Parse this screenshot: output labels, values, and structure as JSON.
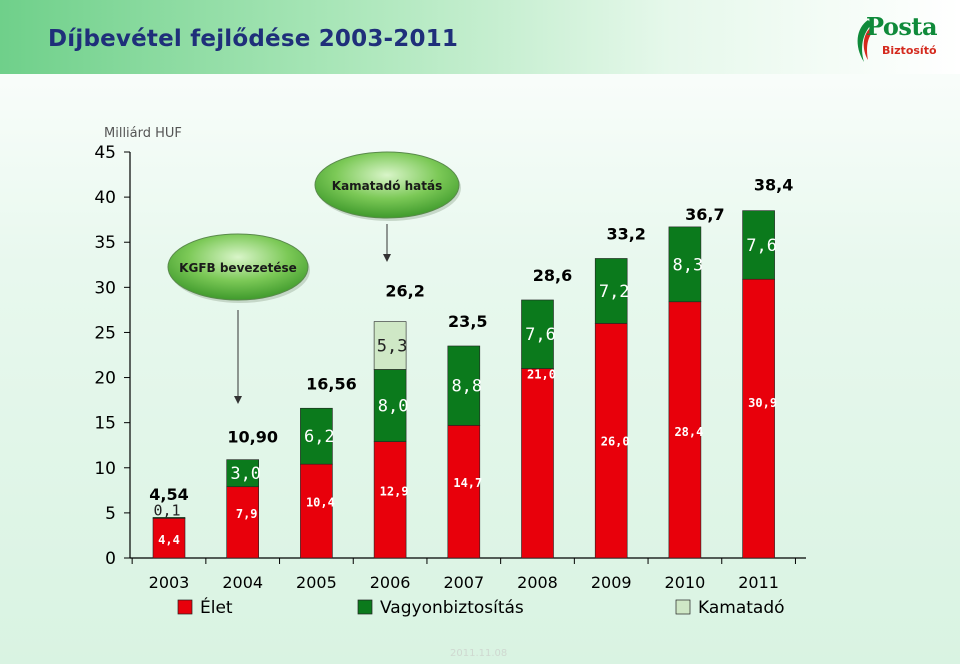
{
  "header": {
    "title": "Díjbevétel fejlődése 2003-2011",
    "logo_primary": "Posta",
    "logo_secondary": "Biztosító"
  },
  "callouts": [
    {
      "label": "KGFB bevezetése",
      "year": "2004"
    },
    {
      "label": "Kamatadó hatás",
      "year": "2006"
    }
  ],
  "colors": {
    "elet": "#e8000b",
    "vagyon": "#0b7a1c",
    "kamatado": "#cfe8c6",
    "axis": "#000000",
    "title": "#1f2f7a"
  },
  "chart_data": {
    "type": "bar",
    "stacked": true,
    "unit_label": "Milliárd HUF",
    "ylim": [
      0,
      45
    ],
    "yticks": [
      0,
      5,
      10,
      15,
      20,
      25,
      30,
      35,
      40,
      45
    ],
    "categories": [
      "2003",
      "2004",
      "2005",
      "2006",
      "2007",
      "2008",
      "2009",
      "2010",
      "2011"
    ],
    "series": [
      {
        "name": "Élet",
        "values": [
          4.4,
          7.9,
          10.4,
          12.9,
          14.7,
          21.0,
          26.0,
          28.4,
          30.9
        ],
        "labels": [
          "4,4",
          "7,9",
          "10,4",
          "12,9",
          "14,7",
          "21,0",
          "26,0",
          "28,4",
          "30,9"
        ]
      },
      {
        "name": "Vagyonbiztosítás",
        "values": [
          0.1,
          3.0,
          6.2,
          8.0,
          8.8,
          7.6,
          7.2,
          8.3,
          7.6
        ],
        "labels": [
          "0,1",
          "3,0",
          "6,2",
          "8,0",
          "8,8",
          "7,6",
          "7,2",
          "8,3",
          "7,6"
        ]
      },
      {
        "name": "Kamatadó",
        "values": [
          0,
          0,
          0,
          5.3,
          0,
          0,
          0,
          0,
          0
        ],
        "labels": [
          "",
          "",
          "",
          "5,3",
          "",
          "",
          "",
          "",
          ""
        ]
      }
    ],
    "totals": [
      4.54,
      10.9,
      16.56,
      26.2,
      23.5,
      28.6,
      33.2,
      36.7,
      38.4
    ],
    "total_labels": [
      "4,54",
      "10,90",
      "16,56",
      "26,2",
      "23,5",
      "28,6",
      "33,2",
      "36,7",
      "38,4"
    ],
    "legend": [
      "Élet",
      "Vagyonbiztosítás",
      "Kamatadó"
    ],
    "legend_position": "bottom"
  },
  "footer": {
    "text": "2011.11.08"
  }
}
